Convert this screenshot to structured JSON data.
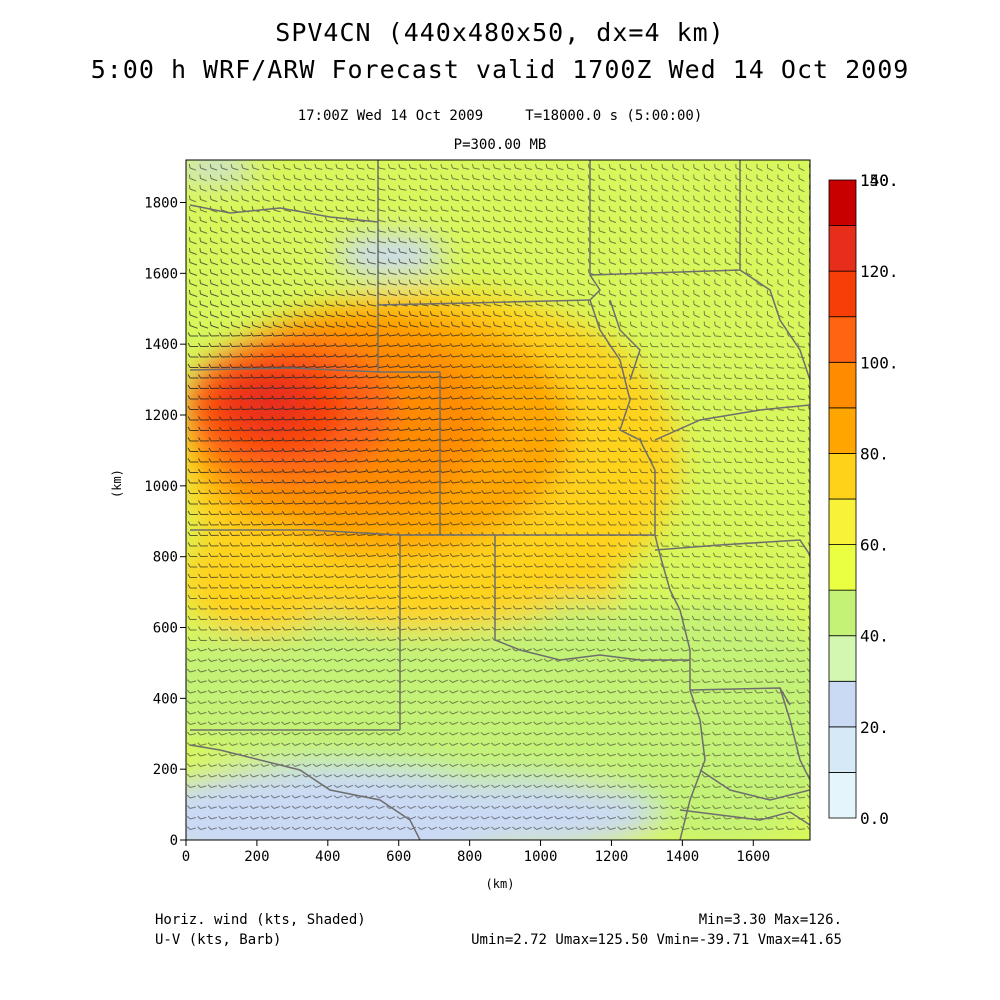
{
  "header": {
    "title_line1": "SPV4CN (440x480x50, dx=4 km)",
    "title_line2": "5:00 h WRF/ARW Forecast valid 1700Z Wed 14 Oct 2009",
    "valid_line": "17:00Z Wed 14 Oct 2009     T=18000.0 s (5:00:00)",
    "level_line": "P=300.00 MB"
  },
  "map": {
    "x_axis_label": "(km)",
    "y_axis_label": "(km)",
    "x_ticks": [
      "0",
      "200",
      "400",
      "600",
      "800",
      "1000",
      "1200",
      "1400",
      "1600"
    ],
    "x_tick_values": [
      0,
      200,
      400,
      600,
      800,
      1000,
      1200,
      1400,
      1600
    ],
    "y_ticks": [
      "0",
      "200",
      "400",
      "600",
      "800",
      "1000",
      "1200",
      "1400",
      "1600",
      "1800"
    ],
    "y_tick_values": [
      0,
      200,
      400,
      600,
      800,
      1000,
      1200,
      1400,
      1600,
      1800
    ],
    "x_range_km": [
      0,
      1760
    ],
    "y_range_km": [
      0,
      1920
    ],
    "field": "Horizontal wind speed (kts)",
    "jet_core": {
      "x_km": 300,
      "y_km": 1210,
      "value_kts": 126
    },
    "background_kts": 50
  },
  "colorbar": {
    "labels": [
      "0.0",
      "20.",
      "40.",
      "60.",
      "80.",
      "100.",
      "120.",
      "140.",
      "150."
    ],
    "colors": [
      "#e4f6fb",
      "#d5eaf6",
      "#cbdaf4",
      "#d3f7b1",
      "#c4f277",
      "#ebff42",
      "#f8f238",
      "#ffd21a",
      "#ffa500",
      "#ff8c00",
      "#ff6413",
      "#f73e07",
      "#e62e1b",
      "#c80000"
    ]
  },
  "footer": {
    "left_line1": "Horiz. wind (kts, Shaded)",
    "left_line2": "U-V (kts, Barb)",
    "right_line1": "Min=3.30 Max=126.",
    "right_line2": "Umin=2.72 Umax=125.50 Vmin=-39.71 Vmax=41.65"
  }
}
